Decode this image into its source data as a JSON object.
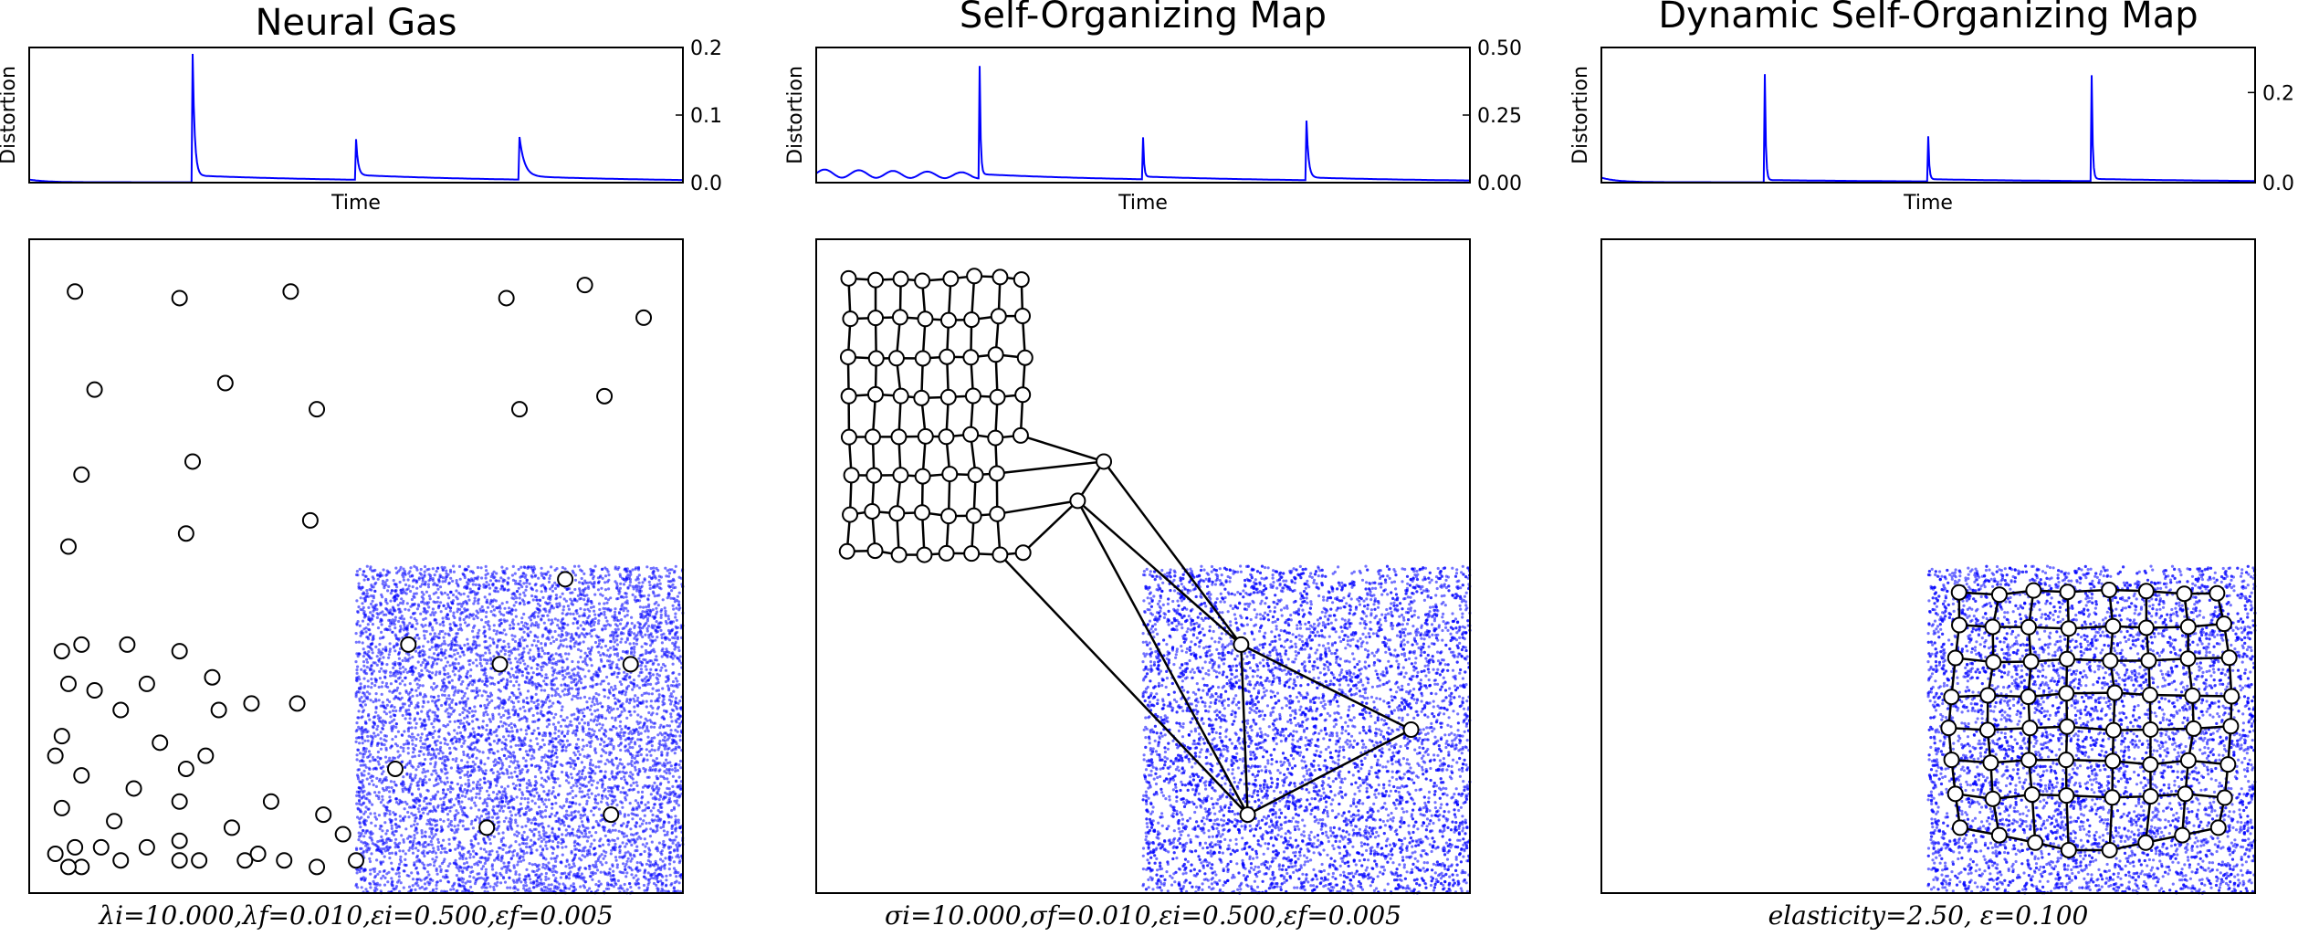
{
  "chart_data": [
    {
      "type": "line",
      "panel": "neural-gas-distortion",
      "title": "Neural Gas",
      "xlabel": "Time",
      "ylabel": "Distortion",
      "ylim": [
        0,
        0.2
      ],
      "yticks": [
        "0.0",
        "0.1",
        "0.2"
      ],
      "grid": false,
      "color": "#0000ff",
      "peaks": [
        {
          "t": 0.25,
          "height": 0.19,
          "base": 0.01,
          "decay": 0.02
        },
        {
          "t": 0.5,
          "height": 0.06,
          "base": 0.007,
          "decay": 0.02
        },
        {
          "t": 0.75,
          "height": 0.063,
          "base": 0.005,
          "decay": 0.05
        }
      ],
      "start_level": 0.004
    },
    {
      "type": "line",
      "panel": "som-distortion",
      "title": "Self-Organizing Map",
      "xlabel": "Time",
      "ylabel": "Distortion",
      "ylim": [
        0,
        0.5
      ],
      "yticks": [
        "0.00",
        "0.25",
        "0.50"
      ],
      "grid": false,
      "color": "#0000ff",
      "peaks": [
        {
          "t": 0.25,
          "height": 0.43,
          "base": 0.03,
          "decay": 0.01
        },
        {
          "t": 0.5,
          "height": 0.155,
          "base": 0.01,
          "decay": 0.01
        },
        {
          "t": 0.75,
          "height": 0.22,
          "base": 0.01,
          "decay": 0.02
        }
      ],
      "start_level": 0.05
    },
    {
      "type": "line",
      "panel": "dsom-distortion",
      "title": "Dynamic Self-Organizing Map",
      "xlabel": "Time",
      "ylabel": "Distortion",
      "ylim": [
        0,
        0.3
      ],
      "yticks": [
        "0.0",
        "0.2"
      ],
      "grid": false,
      "color": "#0000ff",
      "peaks": [
        {
          "t": 0.25,
          "height": 0.24,
          "base": 0.005,
          "decay": 0.01
        },
        {
          "t": 0.5,
          "height": 0.1,
          "base": 0.005,
          "decay": 0.01
        },
        {
          "t": 0.75,
          "height": 0.235,
          "base": 0.005,
          "decay": 0.01
        }
      ],
      "start_level": 0.01
    },
    {
      "type": "scatter",
      "panel": "neural-gas-map",
      "caption": "λi=10.000,λf=0.010,εi=0.500,εf=0.005",
      "xlim": [
        0,
        1
      ],
      "ylim": [
        0,
        1
      ],
      "sample_region": {
        "x": [
          0.5,
          1.0
        ],
        "y": [
          0.0,
          0.5
        ]
      },
      "sample_color": "#0000ff",
      "nodes": [
        [
          0.07,
          0.92
        ],
        [
          0.23,
          0.91
        ],
        [
          0.4,
          0.92
        ],
        [
          0.73,
          0.91
        ],
        [
          0.85,
          0.93
        ],
        [
          0.94,
          0.88
        ],
        [
          0.1,
          0.77
        ],
        [
          0.3,
          0.78
        ],
        [
          0.44,
          0.74
        ],
        [
          0.75,
          0.74
        ],
        [
          0.88,
          0.76
        ],
        [
          0.08,
          0.64
        ],
        [
          0.25,
          0.66
        ],
        [
          0.43,
          0.57
        ],
        [
          0.24,
          0.55
        ],
        [
          0.06,
          0.53
        ],
        [
          0.82,
          0.48
        ],
        [
          0.58,
          0.38
        ],
        [
          0.72,
          0.35
        ],
        [
          0.92,
          0.35
        ],
        [
          0.05,
          0.37
        ],
        [
          0.08,
          0.38
        ],
        [
          0.15,
          0.38
        ],
        [
          0.23,
          0.37
        ],
        [
          0.06,
          0.32
        ],
        [
          0.1,
          0.31
        ],
        [
          0.18,
          0.32
        ],
        [
          0.28,
          0.33
        ],
        [
          0.14,
          0.28
        ],
        [
          0.29,
          0.28
        ],
        [
          0.34,
          0.29
        ],
        [
          0.41,
          0.29
        ],
        [
          0.05,
          0.24
        ],
        [
          0.2,
          0.23
        ],
        [
          0.04,
          0.21
        ],
        [
          0.24,
          0.19
        ],
        [
          0.27,
          0.21
        ],
        [
          0.08,
          0.18
        ],
        [
          0.16,
          0.16
        ],
        [
          0.23,
          0.14
        ],
        [
          0.37,
          0.14
        ],
        [
          0.05,
          0.13
        ],
        [
          0.13,
          0.11
        ],
        [
          0.31,
          0.1
        ],
        [
          0.45,
          0.12
        ],
        [
          0.48,
          0.09
        ],
        [
          0.56,
          0.19
        ],
        [
          0.7,
          0.1
        ],
        [
          0.89,
          0.12
        ],
        [
          0.07,
          0.07
        ],
        [
          0.11,
          0.07
        ],
        [
          0.18,
          0.07
        ],
        [
          0.23,
          0.08
        ],
        [
          0.04,
          0.06
        ],
        [
          0.08,
          0.04
        ],
        [
          0.23,
          0.05
        ],
        [
          0.26,
          0.05
        ],
        [
          0.35,
          0.06
        ],
        [
          0.39,
          0.05
        ],
        [
          0.44,
          0.04
        ],
        [
          0.5,
          0.05
        ],
        [
          0.06,
          0.04
        ],
        [
          0.14,
          0.05
        ],
        [
          0.33,
          0.05
        ]
      ]
    },
    {
      "type": "scatter",
      "panel": "som-map",
      "caption": "σi=10.000,σf=0.010,εi=0.500,εf=0.005",
      "xlim": [
        0,
        1
      ],
      "ylim": [
        0,
        1
      ],
      "sample_region": {
        "x": [
          0.5,
          1.0
        ],
        "y": [
          0.0,
          0.5
        ]
      },
      "sample_color": "#0000ff",
      "grid_size": [
        8,
        8
      ],
      "grid_origin": [
        0.05,
        0.94
      ],
      "grid_step": [
        0.038,
        0.06
      ],
      "detached_nodes": [
        [
          0.65,
          0.38
        ],
        [
          0.91,
          0.25
        ],
        [
          0.66,
          0.12
        ]
      ]
    },
    {
      "type": "scatter",
      "panel": "dsom-map",
      "caption": "elasticity=2.50, ε=0.100",
      "xlim": [
        0,
        1
      ],
      "ylim": [
        0,
        1
      ],
      "sample_region": {
        "x": [
          0.5,
          1.0
        ],
        "y": [
          0.0,
          0.5
        ]
      },
      "sample_color": "#0000ff",
      "grid_size": [
        8,
        8
      ],
      "grid_origin": [
        0.55,
        0.46
      ],
      "grid_step": [
        0.055,
        0.052
      ]
    }
  ]
}
